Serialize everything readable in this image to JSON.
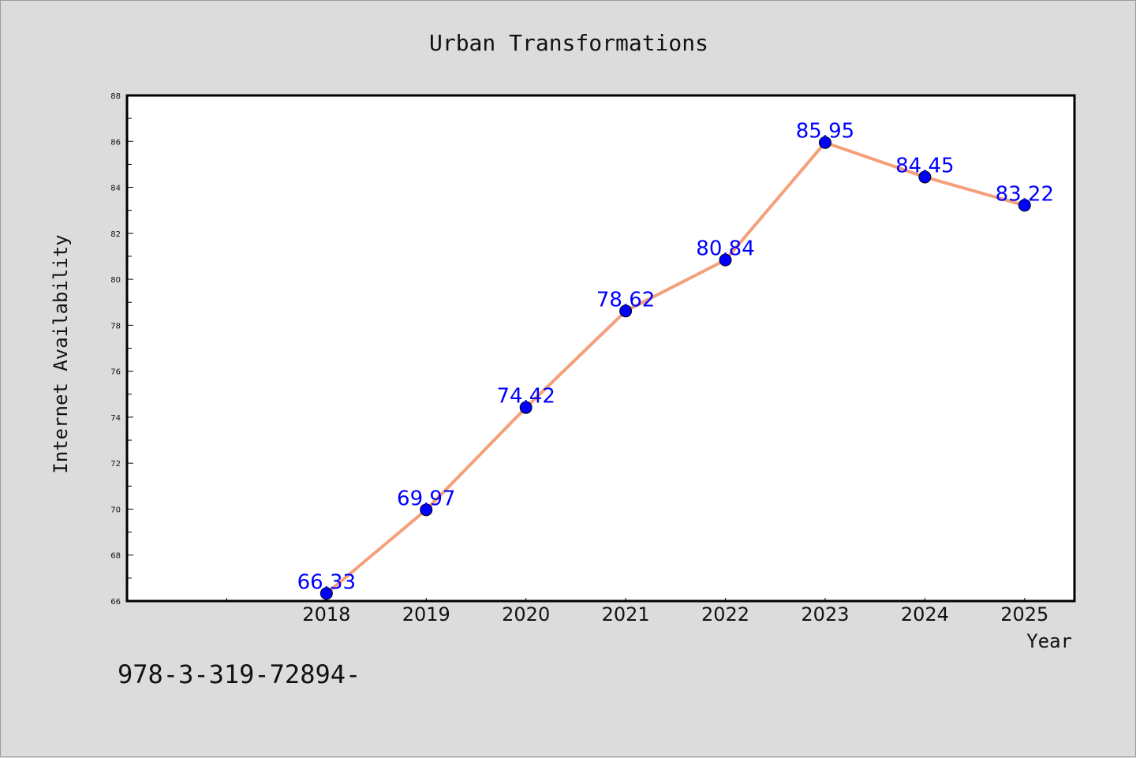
{
  "chart_data": {
    "type": "line",
    "title": "Urban Transformations",
    "xlabel": "Year",
    "ylabel": "Internet Availability",
    "x": [
      "2018",
      "2019",
      "2020",
      "2021",
      "2022",
      "2023",
      "2024",
      "2025"
    ],
    "series": [
      {
        "values": [
          66.33,
          69.97,
          74.42,
          78.62,
          80.84,
          85.95,
          84.45,
          83.22
        ],
        "data_labels": [
          "66.33",
          "69.97",
          "74.42",
          "78.62",
          "80.84",
          "85.95",
          "84.45",
          "83.22"
        ],
        "line_color": "#f4a07a",
        "marker_color": "#0000ff"
      }
    ],
    "ylim": [
      66,
      88
    ],
    "yticks": [
      "66",
      "68",
      "70",
      "72",
      "74",
      "76",
      "78",
      "80",
      "82",
      "84",
      "86",
      "88"
    ],
    "xlim_years": [
      2016,
      2025.5
    ],
    "grid": false,
    "legend": "none",
    "footer_text": "978-3-319-72894-"
  },
  "colors": {
    "background": "#dcdcdc",
    "plot_background": "#ffffff",
    "line": "#f4a07a",
    "marker": "#0000ff",
    "data_label": "#0000ff"
  }
}
